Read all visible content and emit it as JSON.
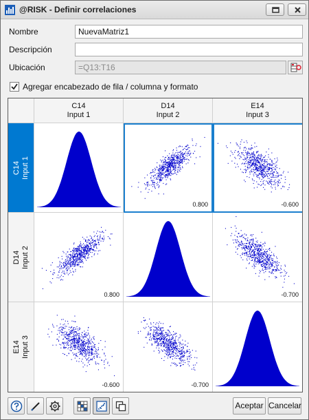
{
  "window": {
    "title": "@RISK - Definir correlaciones"
  },
  "form": {
    "name_label": "Nombre",
    "name_value": "NuevaMatriz1",
    "description_label": "Descripción",
    "description_value": "",
    "location_label": "Ubicación",
    "location_value": "=Q13:T16",
    "header_checkbox_label": "Agregar encabezado de fila / columna y formato",
    "header_checkbox_checked": true
  },
  "matrix": {
    "columns": [
      {
        "ref": "C14",
        "name": "Input 1"
      },
      {
        "ref": "D14",
        "name": "Input 2"
      },
      {
        "ref": "E14",
        "name": "Input 3"
      }
    ],
    "rows": [
      {
        "ref": "C14",
        "name": "Input 1"
      },
      {
        "ref": "D14",
        "name": "Input 2"
      },
      {
        "ref": "E14",
        "name": "Input 3"
      }
    ],
    "selected_row": 0,
    "correlations": [
      [
        "",
        "0.800",
        "-0.600"
      ],
      [
        "0.800",
        "",
        "-0.700"
      ],
      [
        "-0.600",
        "-0.700",
        ""
      ]
    ],
    "correlation_values": [
      [
        1,
        0.8,
        -0.6
      ],
      [
        0.8,
        1,
        -0.7
      ],
      [
        -0.6,
        -0.7,
        1
      ]
    ],
    "fill_color": "#0000cc",
    "selection_color": "#0079d1"
  },
  "footer": {
    "icons": [
      "help-icon",
      "edit-icon",
      "settings-icon",
      "matrix-view-icon",
      "scatter-view-icon",
      "copy-icon"
    ],
    "accept_label": "Aceptar",
    "cancel_label": "Cancelar"
  }
}
